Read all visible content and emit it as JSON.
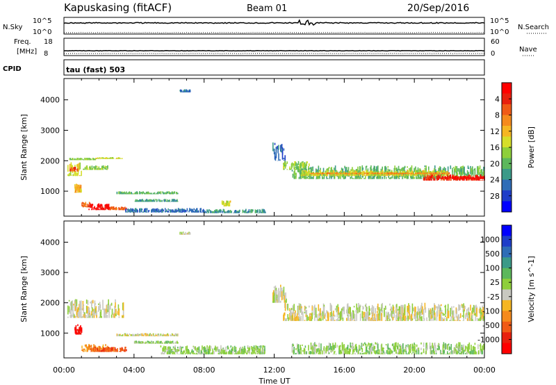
{
  "header": {
    "station": "Kapuskasing (fitACF)",
    "beam": "Beam 01",
    "date": "20/Sep/2016"
  },
  "top_panels": {
    "nsky_label": "N.Sky",
    "nsky_ticks": [
      "10^5",
      "10^0"
    ],
    "nsearch_label": "N.Search",
    "nsearch_ticks": [
      "10^5",
      "10^0"
    ],
    "freq_label": "Freq.",
    "freq_unit": "[MHz]",
    "freq_ticks": [
      "18",
      "8"
    ],
    "nave_label": "Nave",
    "nave_ticks": [
      "60",
      "0"
    ],
    "cpid_label": "CPID",
    "cpid_value": "tau (fast) 503"
  },
  "colors": {
    "power_scale": [
      "#0000ff",
      "#1f3ec9",
      "#2f6db7",
      "#3b9a88",
      "#5cb85c",
      "#8ecf3a",
      "#d6de2a",
      "#f5b622",
      "#f58a1c",
      "#f05a16",
      "#e8200e",
      "#ff0000"
    ],
    "velocity_scale": [
      "#0000ff",
      "#1f3ec9",
      "#2f6db7",
      "#3b9a88",
      "#5cb85c",
      "#8ecf3a",
      "#c8c8c0",
      "#f5b622",
      "#f58a1c",
      "#f05a16",
      "#e8200e",
      "#ff0000"
    ],
    "ground_scatter": "#c8c8c0"
  },
  "chart_data": [
    {
      "type": "heatmap",
      "name": "Power",
      "xlabel": "",
      "ylabel": "Slant Range [km]",
      "yticks": [
        "1000",
        "2000",
        "3000",
        "4000"
      ],
      "xlim_hours": [
        0,
        24
      ],
      "ylim_km": [
        180,
        4700
      ],
      "colorbar_label": "Power [dB]",
      "colorbar_ticks": [
        "4",
        "8",
        "12",
        "16",
        "20",
        "24",
        "28"
      ],
      "regions": [
        {
          "t0": 0.3,
          "t1": 1.8,
          "r0": 2020,
          "r1": 2100,
          "level": 5
        },
        {
          "t0": 1.8,
          "t1": 3.4,
          "r0": 2060,
          "r1": 2120,
          "level": 6
        },
        {
          "t0": 0.2,
          "t1": 1.0,
          "r0": 1500,
          "r1": 1950,
          "level": 6
        },
        {
          "t0": 0.3,
          "t1": 0.8,
          "r0": 1650,
          "r1": 1800,
          "level": 9
        },
        {
          "t0": 1.0,
          "t1": 2.5,
          "r0": 1700,
          "r1": 1850,
          "level": 5
        },
        {
          "t0": 0.6,
          "t1": 1.0,
          "r0": 950,
          "r1": 1250,
          "level": 7
        },
        {
          "t0": 1.0,
          "t1": 1.6,
          "r0": 470,
          "r1": 650,
          "level": 9
        },
        {
          "t0": 1.4,
          "t1": 2.6,
          "r0": 380,
          "r1": 600,
          "level": 11
        },
        {
          "t0": 2.6,
          "t1": 3.6,
          "r0": 380,
          "r1": 500,
          "level": 9
        },
        {
          "t0": 3.0,
          "t1": 6.5,
          "r0": 900,
          "r1": 1000,
          "level": 4
        },
        {
          "t0": 4.0,
          "t1": 6.5,
          "r0": 650,
          "r1": 750,
          "level": 3
        },
        {
          "t0": 3.5,
          "t1": 8.0,
          "r0": 300,
          "r1": 450,
          "level": 2
        },
        {
          "t0": 8.0,
          "t1": 11.5,
          "r0": 280,
          "r1": 420,
          "level": 3
        },
        {
          "t0": 9.0,
          "t1": 9.5,
          "r0": 500,
          "r1": 700,
          "level": 6
        },
        {
          "t0": 11.9,
          "t1": 12.7,
          "r0": 2000,
          "r1": 2600,
          "level": 2
        },
        {
          "t0": 12.5,
          "t1": 14.0,
          "r0": 1700,
          "r1": 2000,
          "level": 5
        },
        {
          "t0": 13.0,
          "t1": 24.0,
          "r0": 1400,
          "r1": 1850,
          "level": 4
        },
        {
          "t0": 13.5,
          "t1": 22.0,
          "r0": 1500,
          "r1": 1700,
          "level": 6
        },
        {
          "t0": 14.0,
          "t1": 22.0,
          "r0": 1560,
          "r1": 1620,
          "level": 8
        },
        {
          "t0": 20.5,
          "t1": 24.0,
          "r0": 1350,
          "r1": 1550,
          "level": 10
        },
        {
          "t0": 21.5,
          "t1": 24.0,
          "r0": 1400,
          "r1": 1500,
          "level": 11
        },
        {
          "t0": 6.6,
          "t1": 7.2,
          "r0": 4250,
          "r1": 4350,
          "level": 2
        }
      ]
    },
    {
      "type": "heatmap",
      "name": "Velocity",
      "xlabel": "Time UT",
      "ylabel": "Slant Range [km]",
      "yticks": [
        "1000",
        "2000",
        "3000",
        "4000"
      ],
      "xticks": [
        "00:00",
        "04:00",
        "08:00",
        "12:00",
        "16:00",
        "20:00",
        "00:00"
      ],
      "xlim_hours": [
        0,
        24
      ],
      "ylim_km": [
        180,
        4700
      ],
      "colorbar_label": "Velocity [m s^-1]",
      "colorbar_ticks": [
        "1000",
        "500",
        "100",
        "25",
        "-25",
        "-100",
        "-500",
        "-1000"
      ],
      "regions": [
        {
          "t0": 0.2,
          "t1": 3.4,
          "r0": 1500,
          "r1": 2120,
          "level": 6
        },
        {
          "t0": 0.6,
          "t1": 1.0,
          "r0": 950,
          "r1": 1300,
          "level": 11
        },
        {
          "t0": 1.0,
          "t1": 2.6,
          "r0": 380,
          "r1": 650,
          "level": 8
        },
        {
          "t0": 1.5,
          "t1": 3.6,
          "r0": 380,
          "r1": 550,
          "level": 9
        },
        {
          "t0": 3.0,
          "t1": 6.5,
          "r0": 900,
          "r1": 1000,
          "level": 6
        },
        {
          "t0": 4.0,
          "t1": 6.5,
          "r0": 650,
          "r1": 750,
          "level": 5
        },
        {
          "t0": 5.5,
          "t1": 11.5,
          "r0": 300,
          "r1": 600,
          "level": 5
        },
        {
          "t0": 11.9,
          "t1": 12.7,
          "r0": 2000,
          "r1": 2600,
          "level": 6
        },
        {
          "t0": 12.5,
          "t1": 24.0,
          "r0": 1400,
          "r1": 2000,
          "level": 6
        },
        {
          "t0": 13.0,
          "t1": 24.0,
          "r0": 300,
          "r1": 700,
          "level": 5
        },
        {
          "t0": 6.6,
          "t1": 7.2,
          "r0": 4250,
          "r1": 4350,
          "level": 6
        }
      ]
    }
  ]
}
